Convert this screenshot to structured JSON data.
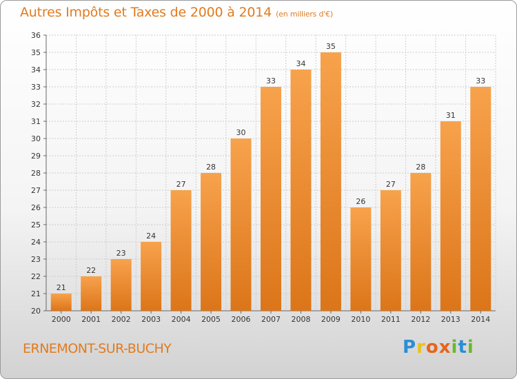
{
  "title": {
    "main": "Autres Impôts et Taxes de 2000 à 2014",
    "unit": "(en milliers d'€)"
  },
  "commune": "ERNEMONT-SUR-BUCHY",
  "logo": {
    "text": "Proxiti",
    "letters": [
      {
        "ch": "P",
        "color": "#2a8fd4"
      },
      {
        "ch": "r",
        "color": "#e8c21a"
      },
      {
        "ch": "o",
        "color": "#e8641a"
      },
      {
        "ch": "x",
        "color": "#e8641a"
      },
      {
        "ch": "i",
        "color": "#6cb830"
      },
      {
        "ch": "t",
        "color": "#2a8fd4"
      },
      {
        "ch": "i",
        "color": "#6cb830"
      }
    ]
  },
  "chart_data": {
    "type": "bar",
    "categories": [
      "2000",
      "2001",
      "2002",
      "2003",
      "2004",
      "2005",
      "2006",
      "2007",
      "2008",
      "2009",
      "2010",
      "2011",
      "2012",
      "2013",
      "2014"
    ],
    "values": [
      21,
      22,
      23,
      24,
      27,
      28,
      30,
      33,
      34,
      35,
      26,
      27,
      28,
      31,
      33
    ],
    "ylim": [
      20,
      36
    ],
    "yticks": [
      20,
      21,
      22,
      23,
      24,
      25,
      26,
      27,
      28,
      29,
      30,
      31,
      32,
      33,
      34,
      35,
      36
    ],
    "grid": true,
    "colors": {
      "bar_light": "#f7a24c",
      "bar_dark": "#e07b1f",
      "grid": "#cccccc"
    }
  }
}
